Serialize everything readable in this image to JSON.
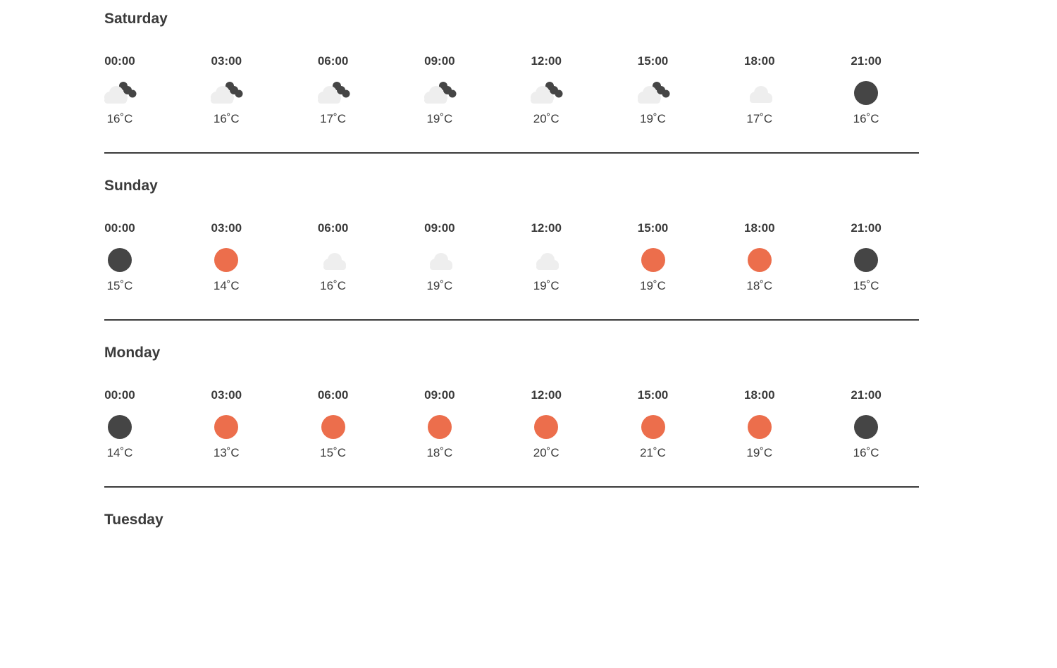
{
  "colors": {
    "sun": "#ec6e4c",
    "moon": "#454545",
    "cloud": "#eeeeee",
    "text": "#3b3b3b"
  },
  "days": [
    {
      "name": "Saturday",
      "slots": [
        {
          "time": "00:00",
          "icon": "cloudy-night-icon",
          "temp": "16˚C"
        },
        {
          "time": "03:00",
          "icon": "cloudy-night-icon",
          "temp": "16˚C"
        },
        {
          "time": "06:00",
          "icon": "cloudy-night-icon",
          "temp": "17˚C"
        },
        {
          "time": "09:00",
          "icon": "cloudy-night-icon",
          "temp": "19˚C"
        },
        {
          "time": "12:00",
          "icon": "cloudy-night-icon",
          "temp": "20˚C"
        },
        {
          "time": "15:00",
          "icon": "cloudy-night-icon",
          "temp": "19˚C"
        },
        {
          "time": "18:00",
          "icon": "cloud-icon",
          "temp": "17˚C"
        },
        {
          "time": "21:00",
          "icon": "moon-icon",
          "temp": "16˚C"
        }
      ]
    },
    {
      "name": "Sunday",
      "slots": [
        {
          "time": "00:00",
          "icon": "moon-icon",
          "temp": "15˚C"
        },
        {
          "time": "03:00",
          "icon": "sun-icon",
          "temp": "14˚C"
        },
        {
          "time": "06:00",
          "icon": "cloud-icon",
          "temp": "16˚C"
        },
        {
          "time": "09:00",
          "icon": "cloud-icon",
          "temp": "19˚C"
        },
        {
          "time": "12:00",
          "icon": "cloud-icon",
          "temp": "19˚C"
        },
        {
          "time": "15:00",
          "icon": "sun-icon",
          "temp": "19˚C"
        },
        {
          "time": "18:00",
          "icon": "sun-icon",
          "temp": "18˚C"
        },
        {
          "time": "21:00",
          "icon": "moon-icon",
          "temp": "15˚C"
        }
      ]
    },
    {
      "name": "Monday",
      "slots": [
        {
          "time": "00:00",
          "icon": "moon-icon",
          "temp": "14˚C"
        },
        {
          "time": "03:00",
          "icon": "sun-icon",
          "temp": "13˚C"
        },
        {
          "time": "06:00",
          "icon": "sun-icon",
          "temp": "15˚C"
        },
        {
          "time": "09:00",
          "icon": "sun-icon",
          "temp": "18˚C"
        },
        {
          "time": "12:00",
          "icon": "sun-icon",
          "temp": "20˚C"
        },
        {
          "time": "15:00",
          "icon": "sun-icon",
          "temp": "21˚C"
        },
        {
          "time": "18:00",
          "icon": "sun-icon",
          "temp": "19˚C"
        },
        {
          "time": "21:00",
          "icon": "moon-icon",
          "temp": "16˚C"
        }
      ]
    },
    {
      "name": "Tuesday",
      "slots": []
    }
  ]
}
